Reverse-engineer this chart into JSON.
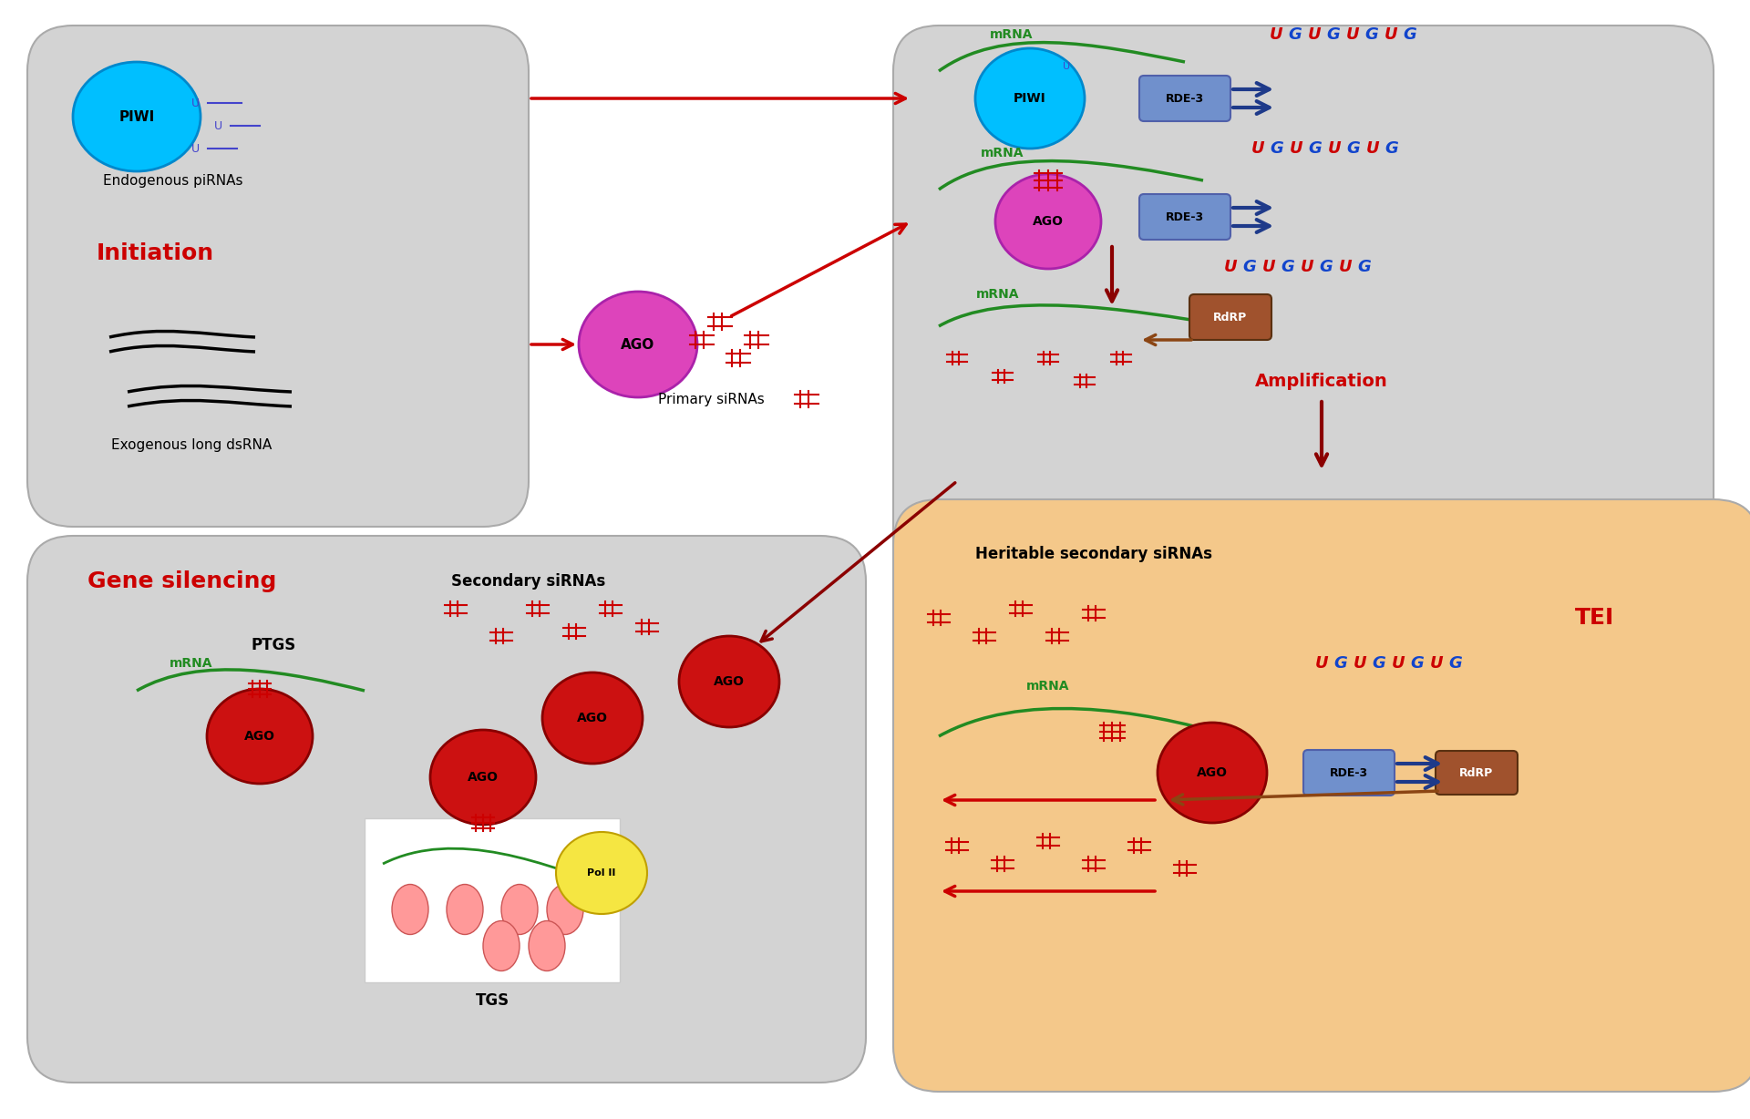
{
  "bg_color": "#ffffff",
  "panel_color": "#d3d3d3",
  "tei_panel_color": "#f4c88a",
  "arrow_red": "#cc0000",
  "arrow_dark_red": "#8b0000",
  "arrow_blue": "#1e3a8a",
  "arrow_brown": "#8B4513",
  "piwi_color": "#00bfff",
  "ago_pink": "#dd44bb",
  "ago_red": "#cc1111",
  "rde3_color": "#7090cc",
  "rdep_color": "#a0522d",
  "polii_color": "#f5e642",
  "mRNA_color": "#228B22",
  "U_color": "#4444cc",
  "UG_U_color": "#cc0000",
  "UG_G_color": "#1144cc",
  "title_texts": {
    "initiation": "Initiation",
    "gene_silencing": "Gene silencing",
    "amplification": "Amplification",
    "tei": "TEI"
  }
}
